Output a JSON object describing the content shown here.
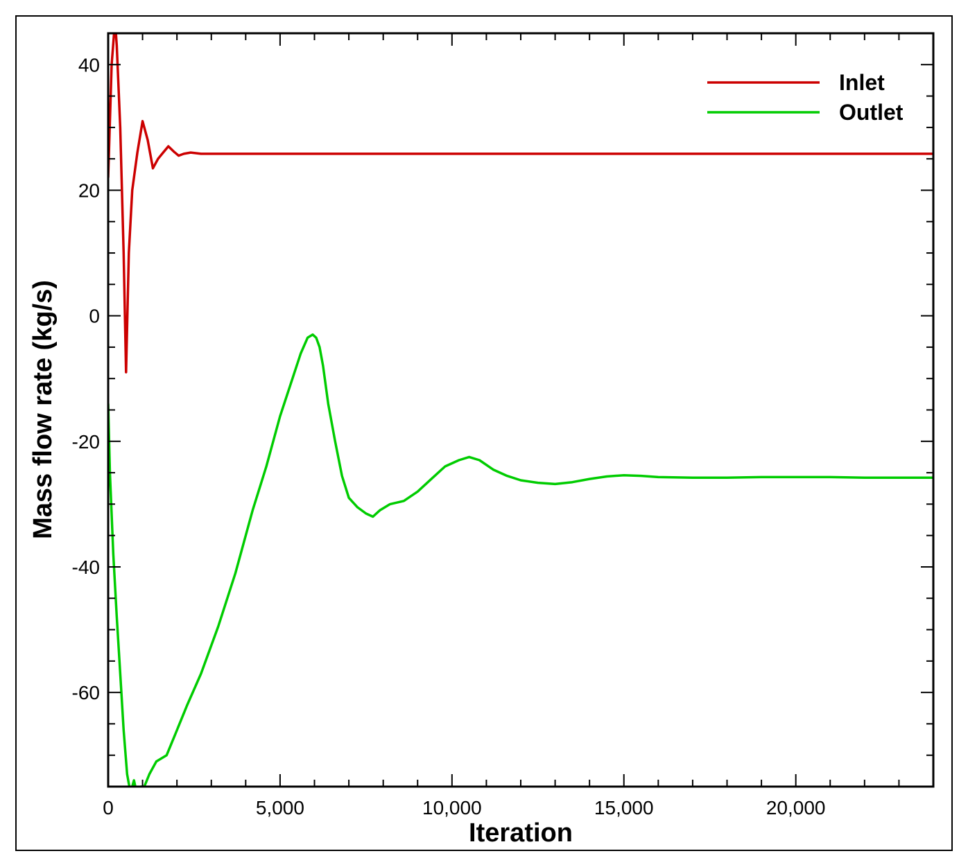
{
  "chart_data": {
    "type": "line",
    "title": "",
    "xlabel": "Iteration",
    "ylabel": "Mass flow rate (kg/s)",
    "xlim": [
      0,
      24000
    ],
    "ylim": [
      -75,
      45
    ],
    "x_ticks": [
      0,
      5000,
      10000,
      15000,
      20000
    ],
    "x_tick_labels": [
      "0",
      "5,000",
      "10,000",
      "15,000",
      "20,000"
    ],
    "y_ticks": [
      -60,
      -40,
      -20,
      0,
      20,
      40
    ],
    "y_tick_labels": [
      "-60",
      "-40",
      "-20",
      "0",
      "20",
      "40"
    ],
    "grid": false,
    "legend_position": "top-right",
    "series": [
      {
        "name": "Inlet",
        "color": "#cc0000",
        "x": [
          0,
          100,
          200,
          250,
          350,
          450,
          520,
          600,
          700,
          850,
          1000,
          1150,
          1300,
          1450,
          1600,
          1750,
          1900,
          2050,
          2200,
          2400,
          2700,
          3000,
          3500,
          5000,
          10000,
          15000,
          20000,
          24000
        ],
        "y": [
          22,
          40,
          47,
          43,
          30,
          10,
          -9,
          10,
          20,
          26,
          31,
          28,
          23.5,
          25,
          26,
          27,
          26.2,
          25.5,
          25.8,
          26,
          25.8,
          25.8,
          25.8,
          25.8,
          25.8,
          25.8,
          25.8,
          25.8
        ]
      },
      {
        "name": "Outlet",
        "color": "#00cc00",
        "x": [
          0,
          50,
          150,
          250,
          350,
          450,
          550,
          650,
          750,
          850,
          950,
          1050,
          1200,
          1400,
          1700,
          2000,
          2300,
          2700,
          3200,
          3700,
          4200,
          4600,
          5000,
          5300,
          5600,
          5800,
          5950,
          6050,
          6150,
          6250,
          6400,
          6600,
          6800,
          7000,
          7250,
          7500,
          7700,
          7900,
          8200,
          8600,
          9000,
          9400,
          9800,
          10200,
          10500,
          10800,
          11200,
          11600,
          12000,
          12500,
          13000,
          13500,
          14000,
          14500,
          15000,
          15500,
          16000,
          17000,
          18000,
          19000,
          20000,
          21000,
          22000,
          23000,
          24000
        ],
        "y": [
          -14,
          -25,
          -38,
          -48,
          -57,
          -66,
          -73,
          -76,
          -74,
          -76.5,
          -75,
          -75,
          -73,
          -71,
          -70,
          -66,
          -62,
          -57,
          -49.5,
          -41,
          -31,
          -24,
          -16,
          -11,
          -6,
          -3.5,
          -3,
          -3.5,
          -5,
          -8,
          -14,
          -20,
          -25.5,
          -29,
          -30.5,
          -31.5,
          -32,
          -31,
          -30,
          -29.5,
          -28,
          -26,
          -24,
          -23,
          -22.5,
          -23,
          -24.5,
          -25.5,
          -26.2,
          -26.6,
          -26.8,
          -26.5,
          -26,
          -25.6,
          -25.4,
          -25.5,
          -25.7,
          -25.8,
          -25.8,
          -25.7,
          -25.7,
          -25.7,
          -25.8,
          -25.8,
          -25.8
        ]
      }
    ]
  }
}
